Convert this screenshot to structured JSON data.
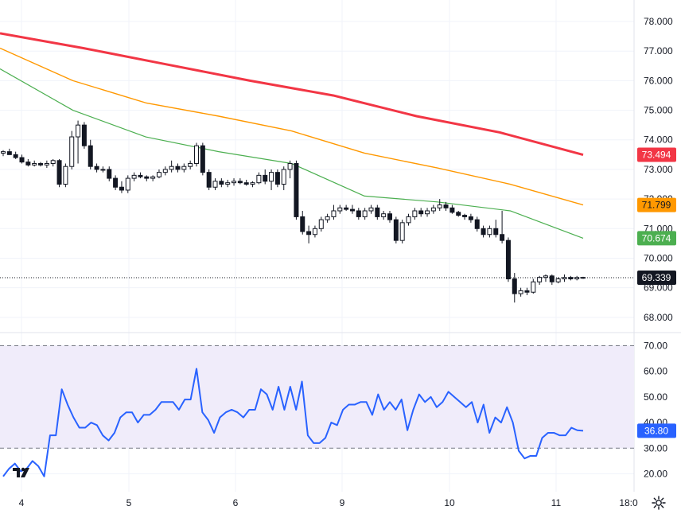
{
  "chart_data": [
    {
      "type": "candlestick",
      "title": "",
      "x_ticks": [
        "4",
        "5",
        "6",
        "9",
        "10",
        "11",
        "18:0"
      ],
      "y_ticks": [
        "68.000",
        "69.000",
        "70.000",
        "71.000",
        "72.000",
        "73.000",
        "74.000",
        "75.000",
        "76.000",
        "77.000",
        "78.000"
      ],
      "ylim": [
        67.7,
        78.35
      ],
      "grid": true,
      "last_price": "69.339",
      "candles": [
        [
          73.55,
          73.65,
          73.45,
          73.6
        ],
        [
          73.6,
          73.7,
          73.5,
          73.5
        ],
        [
          73.5,
          73.6,
          73.35,
          73.4
        ],
        [
          73.4,
          73.5,
          73.2,
          73.25
        ],
        [
          73.25,
          73.35,
          73.1,
          73.15
        ],
        [
          73.15,
          73.3,
          73.1,
          73.2
        ],
        [
          73.2,
          73.25,
          73.1,
          73.15
        ],
        [
          73.15,
          73.3,
          73.05,
          73.2
        ],
        [
          73.2,
          73.35,
          73.1,
          73.3
        ],
        [
          73.3,
          73.35,
          72.4,
          72.5
        ],
        [
          72.5,
          73.2,
          72.4,
          73.1
        ],
        [
          73.1,
          74.3,
          73.0,
          74.1
        ],
        [
          74.1,
          74.65,
          73.2,
          74.5
        ],
        [
          74.5,
          74.6,
          73.7,
          73.8
        ],
        [
          73.8,
          74.0,
          73.0,
          73.1
        ],
        [
          73.1,
          73.2,
          72.9,
          73.0
        ],
        [
          73.0,
          73.1,
          72.9,
          73.0
        ],
        [
          73.0,
          73.1,
          72.6,
          72.7
        ],
        [
          72.7,
          72.8,
          72.3,
          72.4
        ],
        [
          72.4,
          72.6,
          72.2,
          72.3
        ],
        [
          72.3,
          72.8,
          72.2,
          72.7
        ],
        [
          72.7,
          72.9,
          72.6,
          72.8
        ],
        [
          72.8,
          72.9,
          72.7,
          72.75
        ],
        [
          72.75,
          72.8,
          72.6,
          72.7
        ],
        [
          72.7,
          72.8,
          72.6,
          72.75
        ],
        [
          72.75,
          73.0,
          72.7,
          72.9
        ],
        [
          72.9,
          73.1,
          72.8,
          73.0
        ],
        [
          73.0,
          73.3,
          72.9,
          73.1
        ],
        [
          73.1,
          73.2,
          72.9,
          73.0
        ],
        [
          73.0,
          73.2,
          72.9,
          73.1
        ],
        [
          73.1,
          73.3,
          73.0,
          73.2
        ],
        [
          73.2,
          73.9,
          73.1,
          73.8
        ],
        [
          73.8,
          73.9,
          72.8,
          72.9
        ],
        [
          72.9,
          73.0,
          72.3,
          72.4
        ],
        [
          72.4,
          72.7,
          72.3,
          72.6
        ],
        [
          72.6,
          72.7,
          72.4,
          72.5
        ],
        [
          72.5,
          72.65,
          72.4,
          72.55
        ],
        [
          72.55,
          72.7,
          72.45,
          72.6
        ],
        [
          72.6,
          72.7,
          72.5,
          72.55
        ],
        [
          72.55,
          72.65,
          72.45,
          72.5
        ],
        [
          72.5,
          72.6,
          72.4,
          72.55
        ],
        [
          72.55,
          72.9,
          72.5,
          72.8
        ],
        [
          72.8,
          73.0,
          72.5,
          72.6
        ],
        [
          72.6,
          73.0,
          72.3,
          72.9
        ],
        [
          72.9,
          73.0,
          72.4,
          72.5
        ],
        [
          72.5,
          73.1,
          72.3,
          73.0
        ],
        [
          73.0,
          73.3,
          72.7,
          73.2
        ],
        [
          73.2,
          73.3,
          71.3,
          71.4
        ],
        [
          71.4,
          71.6,
          70.8,
          70.9
        ],
        [
          70.9,
          71.1,
          70.5,
          70.8
        ],
        [
          70.8,
          71.1,
          70.7,
          71.0
        ],
        [
          71.0,
          71.4,
          70.9,
          71.3
        ],
        [
          71.3,
          71.5,
          71.2,
          71.4
        ],
        [
          71.4,
          71.8,
          71.3,
          71.6
        ],
        [
          71.6,
          71.8,
          71.5,
          71.7
        ],
        [
          71.7,
          71.8,
          71.6,
          71.65
        ],
        [
          71.65,
          71.8,
          71.5,
          71.6
        ],
        [
          71.6,
          71.7,
          71.3,
          71.4
        ],
        [
          71.4,
          71.7,
          71.3,
          71.6
        ],
        [
          71.6,
          71.8,
          71.5,
          71.7
        ],
        [
          71.7,
          71.8,
          71.3,
          71.4
        ],
        [
          71.4,
          71.6,
          71.3,
          71.5
        ],
        [
          71.5,
          71.6,
          71.2,
          71.3
        ],
        [
          71.3,
          71.4,
          70.5,
          70.6
        ],
        [
          70.6,
          71.3,
          70.5,
          71.2
        ],
        [
          71.2,
          71.5,
          71.1,
          71.4
        ],
        [
          71.4,
          71.7,
          71.3,
          71.6
        ],
        [
          71.6,
          71.7,
          71.4,
          71.5
        ],
        [
          71.5,
          71.7,
          71.4,
          71.6
        ],
        [
          71.6,
          71.8,
          71.5,
          71.7
        ],
        [
          71.7,
          72.0,
          71.6,
          71.8
        ],
        [
          71.8,
          71.9,
          71.6,
          71.7
        ],
        [
          71.7,
          71.8,
          71.5,
          71.55
        ],
        [
          71.55,
          71.6,
          71.4,
          71.45
        ],
        [
          71.45,
          71.5,
          71.3,
          71.4
        ],
        [
          71.4,
          71.5,
          71.2,
          71.3
        ],
        [
          71.3,
          71.4,
          70.9,
          71.0
        ],
        [
          71.0,
          71.1,
          70.7,
          70.8
        ],
        [
          70.8,
          71.1,
          70.7,
          71.0
        ],
        [
          71.0,
          71.3,
          70.7,
          70.8
        ],
        [
          70.8,
          71.6,
          70.5,
          70.6
        ],
        [
          70.6,
          70.7,
          69.2,
          69.3
        ],
        [
          69.3,
          69.5,
          68.5,
          68.8
        ],
        [
          68.8,
          69.0,
          68.7,
          68.9
        ],
        [
          68.9,
          69.0,
          68.75,
          68.85
        ],
        [
          68.85,
          69.3,
          68.8,
          69.2
        ],
        [
          69.2,
          69.4,
          69.1,
          69.35
        ],
        [
          69.35,
          69.45,
          69.2,
          69.4
        ],
        [
          69.4,
          69.45,
          69.1,
          69.2
        ],
        [
          69.2,
          69.35,
          69.15,
          69.3
        ],
        [
          69.3,
          69.45,
          69.2,
          69.35
        ],
        [
          69.35,
          69.4,
          69.25,
          69.3
        ],
        [
          69.3,
          69.4,
          69.25,
          69.35
        ],
        [
          69.35,
          69.37,
          69.3,
          69.339
        ]
      ],
      "series": [
        {
          "name": "",
          "color": "#f23645",
          "last": "73.494",
          "values": [
            77.6,
            77.1,
            76.55,
            76.0,
            75.5,
            74.8,
            74.25,
            73.494
          ]
        },
        {
          "name": "",
          "color": "#ff9800",
          "last": "71.799",
          "values": [
            77.1,
            76.0,
            75.25,
            74.8,
            74.3,
            73.55,
            73.05,
            72.5,
            71.799
          ]
        },
        {
          "name": "",
          "color": "#4caf50",
          "last": "70.674",
          "values": [
            76.4,
            75.0,
            74.1,
            73.6,
            73.2,
            72.1,
            71.9,
            71.6,
            70.674
          ]
        }
      ]
    },
    {
      "type": "line",
      "title": "",
      "y_ticks": [
        "20.00",
        "30.00",
        "40.00",
        "50.00",
        "60.00",
        "70.00"
      ],
      "ylim": [
        15.5,
        72
      ],
      "band": [
        30,
        70
      ],
      "last_value": "36.80",
      "series": [
        {
          "name": "",
          "color": "#2962ff",
          "values": [
            19,
            22,
            24,
            21,
            22,
            25,
            23,
            19,
            35,
            35,
            53,
            47,
            42,
            38,
            38,
            40,
            39,
            35,
            33,
            36,
            42,
            44,
            44,
            40,
            43,
            43,
            45,
            48,
            48,
            48,
            45,
            49,
            49,
            61,
            44,
            41,
            36,
            42,
            44,
            45,
            44,
            42,
            45,
            45,
            53,
            51,
            45,
            54,
            45,
            54,
            45,
            56,
            35,
            32,
            32,
            34,
            40,
            39,
            45,
            47,
            47,
            48,
            48,
            43,
            51,
            45,
            48,
            45,
            49,
            37,
            45,
            51,
            48,
            50,
            46,
            48,
            52,
            50,
            48,
            46,
            48,
            40,
            47,
            36,
            42,
            40,
            46,
            40,
            29,
            26,
            27,
            27,
            34,
            36,
            36,
            35,
            35,
            38,
            37,
            36.8
          ]
        }
      ]
    }
  ],
  "colors": {
    "last_price_badge": "#131722",
    "rsi_line": "#2962ff",
    "rsi_band_fill": "#f0ecfa"
  },
  "icons": {
    "settings": "gear-icon",
    "logo": "tradingview-logo-icon"
  }
}
